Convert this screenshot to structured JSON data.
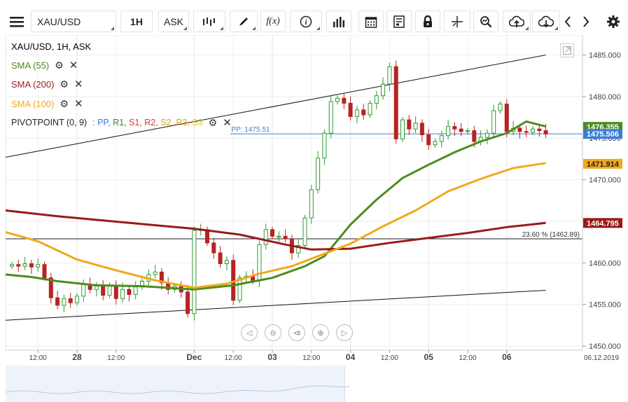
{
  "toolbar": {
    "symbol": "XAU/USD",
    "interval": "1H",
    "price_type": "ASK",
    "buttons": [
      "menu-icon",
      "bar-type-icon",
      "draw-icon",
      "function-icon",
      "info-icon",
      "volume-icon",
      "calendar-icon",
      "news-icon",
      "lock-icon",
      "crosshair-icon",
      "zoom-icon",
      "upload-icon",
      "download-icon",
      "chevron-left-icon",
      "chevron-right-icon",
      "gear-icon"
    ],
    "function_label": "f(x)",
    "info_label": "i"
  },
  "legend": {
    "header": "XAU/USD, 1H, ASK",
    "sma55": "SMA (55)",
    "sma200": "SMA (200)",
    "sma100": "SMA (100)",
    "pivot": "PIVOTPOINT (0, 9)",
    "pivot_items": [
      {
        "label": ": PP,",
        "color": "#3b7dd8"
      },
      {
        "label": "R1,",
        "color": "#2f8a2f"
      },
      {
        "label": "S1,",
        "color": "#d23b3b"
      },
      {
        "label": "R2,",
        "color": "#d23b3b"
      },
      {
        "label": "S2,",
        "color": "#e0a000"
      },
      {
        "label": "R3,",
        "color": "#e0a000"
      },
      {
        "label": "S3",
        "color": "#f0c800"
      }
    ]
  },
  "chart_data": {
    "type": "candlestick",
    "title": "XAU/USD, 1H, ASK",
    "ylim": [
      1449.5,
      1487.4
    ],
    "y_ticks": [
      "1485.000",
      "1480.000",
      "1475.000",
      "1470.000",
      "1465.000",
      "1460.000",
      "1455.000",
      "1450.000"
    ],
    "y_tick_values": [
      1485,
      1480,
      1475,
      1470,
      1465,
      1460,
      1455,
      1450
    ],
    "x_labels": [
      {
        "label": "12:00",
        "t": 4,
        "bold": false
      },
      {
        "label": "28",
        "t": 10,
        "bold": true
      },
      {
        "label": "12:00",
        "t": 16,
        "bold": false
      },
      {
        "label": "Dec",
        "t": 28,
        "bold": true
      },
      {
        "label": "12:00",
        "t": 34,
        "bold": false
      },
      {
        "label": "03",
        "t": 40,
        "bold": true
      },
      {
        "label": "12:00",
        "t": 46,
        "bold": false
      },
      {
        "label": "04",
        "t": 52,
        "bold": true
      },
      {
        "label": "12:00",
        "t": 58,
        "bold": false
      },
      {
        "label": "05",
        "t": 64,
        "bold": true
      },
      {
        "label": "12:00",
        "t": 70,
        "bold": false
      },
      {
        "label": "06",
        "t": 76,
        "bold": true
      }
    ],
    "current_date": "06.12.2019",
    "close_points": [
      [
        0,
        1459.8
      ],
      [
        1,
        1459.6
      ],
      [
        2,
        1459.9
      ],
      [
        3,
        1459.5
      ],
      [
        4,
        1459.8
      ],
      [
        5,
        1458.2
      ],
      [
        6,
        1455.8
      ],
      [
        7,
        1454.9
      ],
      [
        8,
        1455.7
      ],
      [
        9,
        1455.2
      ],
      [
        10,
        1456.0
      ],
      [
        11,
        1457.4
      ],
      [
        12,
        1456.8
      ],
      [
        13,
        1457.2
      ],
      [
        14,
        1456.1
      ],
      [
        15,
        1457.3
      ],
      [
        16,
        1455.7
      ],
      [
        17,
        1456.8
      ],
      [
        18,
        1456.2
      ],
      [
        19,
        1457.1
      ],
      [
        20,
        1457.8
      ],
      [
        21,
        1458.6
      ],
      [
        22,
        1458.9
      ],
      [
        23,
        1457.6
      ],
      [
        24,
        1456.8
      ],
      [
        25,
        1457.2
      ],
      [
        26,
        1456.5
      ],
      [
        27,
        1453.9
      ],
      [
        28,
        1463.9
      ],
      [
        29,
        1464.0
      ],
      [
        30,
        1462.4
      ],
      [
        31,
        1461.2
      ],
      [
        32,
        1459.9
      ],
      [
        33,
        1460.3
      ],
      [
        34,
        1455.5
      ],
      [
        35,
        1458.2
      ],
      [
        36,
        1458.4
      ],
      [
        37,
        1457.9
      ],
      [
        38,
        1462.2
      ],
      [
        39,
        1464.0
      ],
      [
        40,
        1463.2
      ],
      [
        41,
        1463.2
      ],
      [
        42,
        1462.9
      ],
      [
        43,
        1461.2
      ],
      [
        44,
        1462.1
      ],
      [
        45,
        1465.4
      ],
      [
        46,
        1468.8
      ],
      [
        47,
        1472.6
      ],
      [
        48,
        1475.6
      ],
      [
        49,
        1479.4
      ],
      [
        50,
        1479.8
      ],
      [
        51,
        1479.2
      ],
      [
        52,
        1477.6
      ],
      [
        53,
        1478.4
      ],
      [
        54,
        1477.8
      ],
      [
        55,
        1479.2
      ],
      [
        56,
        1480.1
      ],
      [
        57,
        1481.5
      ],
      [
        58,
        1483.6
      ],
      [
        59,
        1474.9
      ],
      [
        60,
        1477.2
      ],
      [
        61,
        1476.1
      ],
      [
        62,
        1476.8
      ],
      [
        63,
        1475.4
      ],
      [
        64,
        1474.2
      ],
      [
        65,
        1474.6
      ],
      [
        66,
        1475.3
      ],
      [
        67,
        1476.4
      ],
      [
        68,
        1476.1
      ],
      [
        69,
        1475.8
      ],
      [
        70,
        1475.9
      ],
      [
        71,
        1474.6
      ],
      [
        72,
        1475.1
      ],
      [
        73,
        1475.6
      ],
      [
        74,
        1478.3
      ],
      [
        75,
        1479.1
      ],
      [
        76,
        1475.8
      ],
      [
        77,
        1476.2
      ],
      [
        78,
        1475.8
      ],
      [
        79,
        1475.7
      ],
      [
        80,
        1476.1
      ],
      [
        81,
        1475.9
      ],
      [
        82,
        1475.5
      ]
    ],
    "series": [
      {
        "name": "SMA (55)",
        "color": "#4c8c1e",
        "values": [
          [
            0,
            1458.6
          ],
          [
            3,
            1458.3
          ],
          [
            7,
            1457.8
          ],
          [
            13,
            1457.3
          ],
          [
            20,
            1457.2
          ],
          [
            28,
            1456.8
          ],
          [
            34,
            1457.3
          ],
          [
            40,
            1458.2
          ],
          [
            45,
            1459.6
          ],
          [
            48,
            1460.8
          ],
          [
            52,
            1464.6
          ],
          [
            56,
            1467.6
          ],
          [
            60,
            1470.2
          ],
          [
            64,
            1471.8
          ],
          [
            68,
            1473.3
          ],
          [
            72,
            1474.6
          ],
          [
            76,
            1475.6
          ],
          [
            79,
            1477.0
          ],
          [
            82,
            1476.4
          ]
        ]
      },
      {
        "name": "SMA (200)",
        "color": "#9a1a1a",
        "values": [
          [
            0,
            1466.3
          ],
          [
            7,
            1465.6
          ],
          [
            14,
            1465.1
          ],
          [
            21,
            1464.6
          ],
          [
            28,
            1464.1
          ],
          [
            35,
            1463.4
          ],
          [
            42,
            1462.2
          ],
          [
            46,
            1461.6
          ],
          [
            52,
            1461.7
          ],
          [
            58,
            1462.4
          ],
          [
            64,
            1463.0
          ],
          [
            70,
            1463.6
          ],
          [
            76,
            1464.3
          ],
          [
            82,
            1464.8
          ]
        ]
      },
      {
        "name": "SMA (100)",
        "color": "#f2a81b",
        "values": [
          [
            0,
            1463.7
          ],
          [
            4,
            1462.6
          ],
          [
            10,
            1460.4
          ],
          [
            16,
            1459.1
          ],
          [
            22,
            1457.9
          ],
          [
            28,
            1457.0
          ],
          [
            33,
            1457.5
          ],
          [
            38,
            1458.7
          ],
          [
            43,
            1459.6
          ],
          [
            47,
            1460.8
          ],
          [
            52,
            1462.3
          ],
          [
            57,
            1464.4
          ],
          [
            62,
            1466.3
          ],
          [
            67,
            1468.6
          ],
          [
            72,
            1470.1
          ],
          [
            77,
            1471.4
          ],
          [
            82,
            1472.0
          ]
        ]
      }
    ],
    "trend_lines": [
      {
        "from": [
          -1,
          1472.7
        ],
        "to": [
          82,
          1485.0
        ]
      },
      {
        "from": [
          -1,
          1453.1
        ],
        "to": [
          82,
          1456.7
        ]
      }
    ],
    "fibonacci": {
      "label": "23.60 % (1462.89)",
      "value": 1462.89
    },
    "pivot_pp": {
      "label": "PP: 1475.51",
      "value": 1475.51
    },
    "price_labels": [
      {
        "value": "1476.355",
        "y": 1476.355,
        "bg": "#4c8c1e",
        "fg": "#ffffff"
      },
      {
        "value": "1475.506",
        "y": 1475.506,
        "bg": "#3b7dd8",
        "fg": "#ffffff"
      },
      {
        "value": "1471.914",
        "y": 1471.914,
        "bg": "#f2a81b",
        "fg": "#222222"
      },
      {
        "value": "1464.795",
        "y": 1464.795,
        "bg": "#9a1a1a",
        "fg": "#ffffff"
      }
    ]
  }
}
